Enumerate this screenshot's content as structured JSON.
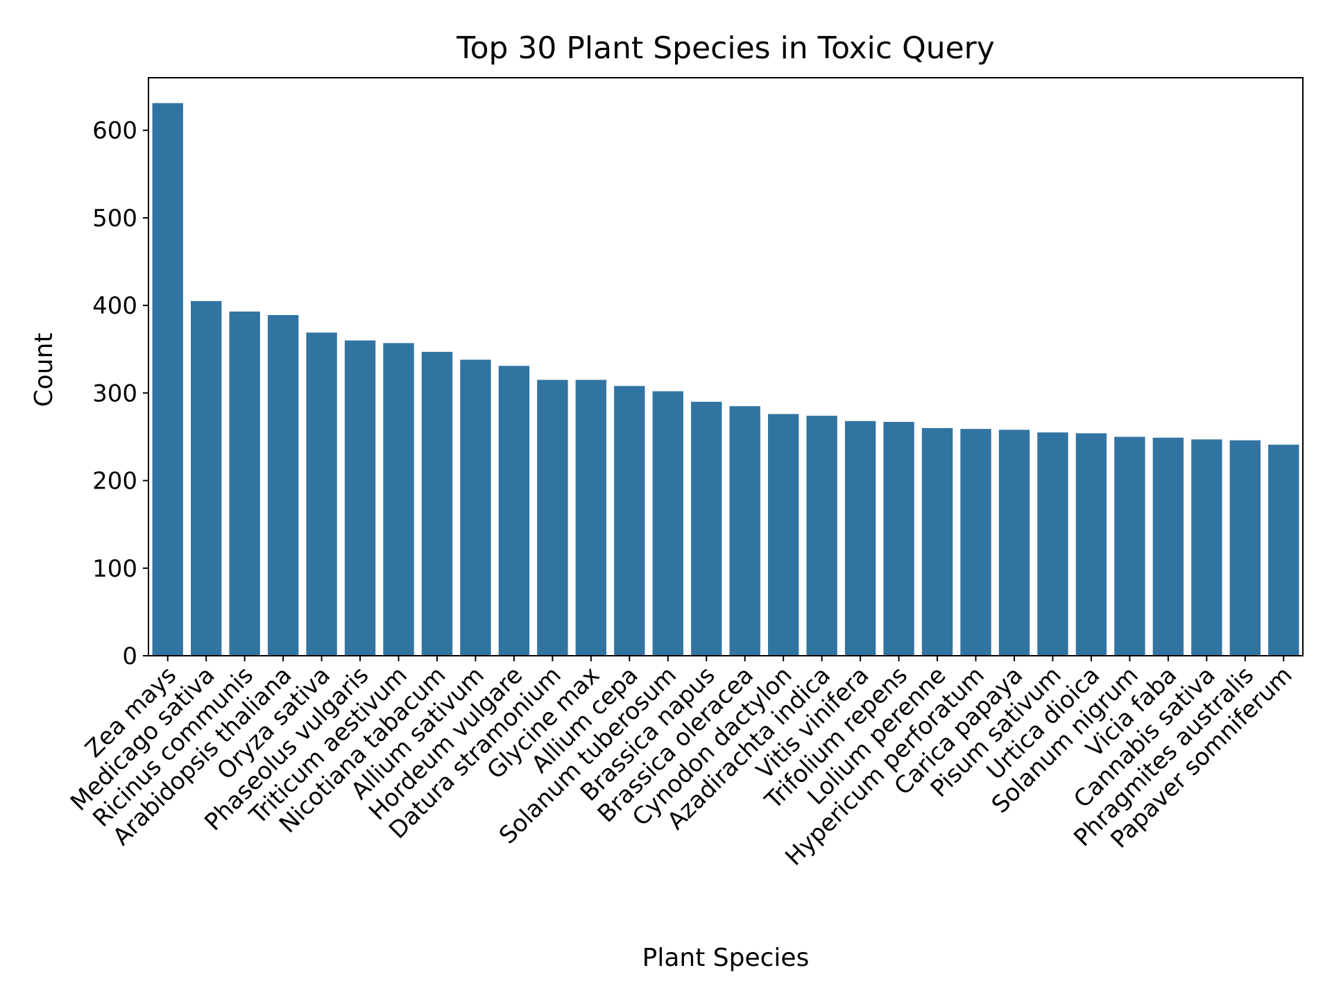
{
  "chart_data": {
    "type": "bar",
    "title": "Top 30 Plant Species in Toxic Query",
    "xlabel": "Plant Species",
    "ylabel": "Count",
    "ylim": [
      0,
      660
    ],
    "yticks": [
      0,
      100,
      200,
      300,
      400,
      500,
      600
    ],
    "grid": false,
    "bar_color": "#3274a1",
    "categories": [
      "Zea mays",
      "Medicago sativa",
      "Ricinus communis",
      "Arabidopsis thaliana",
      "Oryza sativa",
      "Phaseolus vulgaris",
      "Triticum aestivum",
      "Nicotiana tabacum",
      "Allium sativum",
      "Hordeum vulgare",
      "Datura stramonium",
      "Glycine max",
      "Allium cepa",
      "Solanum tuberosum",
      "Brassica napus",
      "Brassica oleracea",
      "Cynodon dactylon",
      "Azadirachta indica",
      "Vitis vinifera",
      "Trifolium repens",
      "Lolium perenne",
      "Hypericum perforatum",
      "Carica papaya",
      "Pisum sativum",
      "Urtica dioica",
      "Solanum nigrum",
      "Vicia faba",
      "Cannabis sativa",
      "Phragmites australis",
      "Papaver somniferum"
    ],
    "values": [
      631,
      405,
      393,
      389,
      369,
      360,
      357,
      347,
      338,
      331,
      315,
      315,
      308,
      302,
      290,
      285,
      276,
      274,
      268,
      267,
      260,
      259,
      258,
      255,
      254,
      250,
      249,
      247,
      246,
      241
    ]
  }
}
